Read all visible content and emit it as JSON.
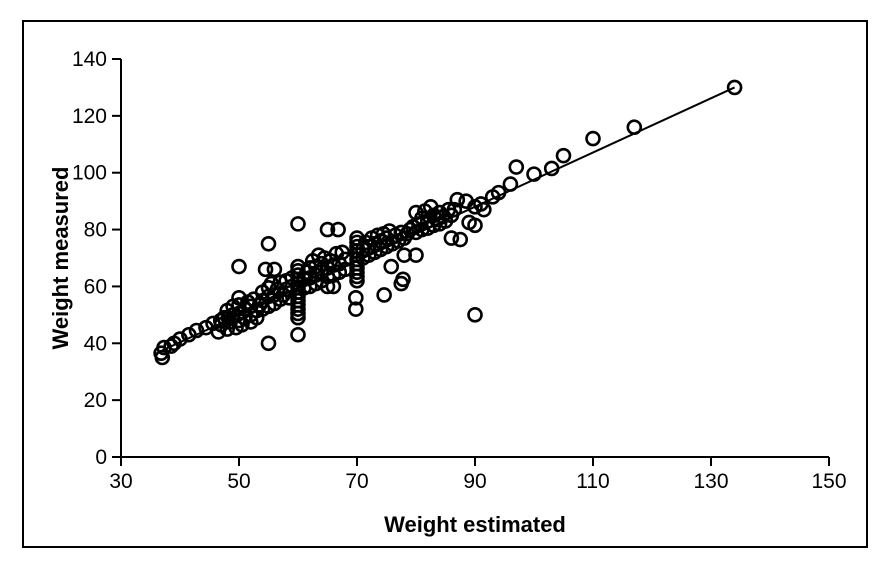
{
  "figure": {
    "background": "#ffffff",
    "border_color": "#000000"
  },
  "chart_data": {
    "type": "scatter",
    "title": "",
    "xlabel": "Weight estimated",
    "ylabel": "Weight measured",
    "xlim": [
      30,
      150
    ],
    "ylim": [
      0,
      140
    ],
    "xticks": [
      30,
      50,
      70,
      90,
      110,
      130,
      150
    ],
    "yticks": [
      0,
      20,
      40,
      60,
      80,
      100,
      120,
      140
    ],
    "grid": false,
    "legend": "none",
    "marker": {
      "shape": "open-circle",
      "radius": 6.5,
      "stroke_width": 2.6,
      "color": "#000000"
    },
    "trend_line": {
      "x1": 37,
      "y1": 37.5,
      "x2": 134,
      "y2": 130,
      "color": "#000000",
      "width": 2
    },
    "axis_color": "#000000",
    "points": [
      [
        37,
        35
      ],
      [
        36.8,
        36.5
      ],
      [
        37.3,
        38.5
      ],
      [
        38.5,
        39
      ],
      [
        39,
        40
      ],
      [
        40,
        41.5
      ],
      [
        41.5,
        43
      ],
      [
        42.8,
        44.5
      ],
      [
        44.4,
        45.5
      ],
      [
        45.6,
        47
      ],
      [
        46.9,
        48
      ],
      [
        48.2,
        49
      ],
      [
        46.5,
        44
      ],
      [
        47,
        46.5
      ],
      [
        47.5,
        49
      ],
      [
        48,
        51.5
      ],
      [
        48,
        45
      ],
      [
        48.5,
        47.5
      ],
      [
        49,
        50
      ],
      [
        49,
        53
      ],
      [
        49.5,
        45.5
      ],
      [
        50,
        48
      ],
      [
        50,
        50.5
      ],
      [
        50,
        53.5
      ],
      [
        50,
        56
      ],
      [
        50.5,
        46.5
      ],
      [
        51,
        49
      ],
      [
        51,
        52
      ],
      [
        51.5,
        54.5
      ],
      [
        52,
        47.5
      ],
      [
        52,
        50
      ],
      [
        52,
        53
      ],
      [
        52.5,
        55.5
      ],
      [
        53,
        49
      ],
      [
        53,
        51.5
      ],
      [
        53.5,
        53.5
      ],
      [
        54,
        52
      ],
      [
        54,
        55
      ],
      [
        54,
        58
      ],
      [
        54.5,
        66
      ],
      [
        55,
        53
      ],
      [
        55,
        56.5
      ],
      [
        55,
        59.5
      ],
      [
        55.5,
        61
      ],
      [
        56,
        54
      ],
      [
        56,
        57
      ],
      [
        56,
        66
      ],
      [
        56.5,
        59
      ],
      [
        57,
        55.5
      ],
      [
        57,
        61.5
      ],
      [
        57.5,
        57
      ],
      [
        58,
        59
      ],
      [
        58,
        62
      ],
      [
        58.5,
        56
      ],
      [
        59,
        60
      ],
      [
        59,
        63
      ],
      [
        50,
        67
      ],
      [
        55,
        75
      ],
      [
        55,
        40
      ],
      [
        60,
        43
      ],
      [
        60,
        82
      ],
      [
        90,
        50
      ],
      [
        60,
        49
      ],
      [
        60,
        50.5
      ],
      [
        60,
        52
      ],
      [
        60,
        53.5
      ],
      [
        60,
        55
      ],
      [
        60,
        56.5
      ],
      [
        60,
        58
      ],
      [
        60,
        59.5
      ],
      [
        60,
        61
      ],
      [
        60,
        62.5
      ],
      [
        60,
        64
      ],
      [
        60,
        65.5
      ],
      [
        60,
        67
      ],
      [
        61,
        59.5
      ],
      [
        61,
        62.5
      ],
      [
        61.5,
        65
      ],
      [
        62,
        60
      ],
      [
        62,
        63
      ],
      [
        62,
        66.5
      ],
      [
        62.5,
        69
      ],
      [
        63,
        61
      ],
      [
        63,
        64
      ],
      [
        63,
        67
      ],
      [
        63.5,
        71
      ],
      [
        64,
        62
      ],
      [
        64,
        65
      ],
      [
        64,
        68
      ],
      [
        64.5,
        70
      ],
      [
        65,
        60
      ],
      [
        65,
        63.5
      ],
      [
        65,
        66.5
      ],
      [
        65.5,
        69
      ],
      [
        66,
        60
      ],
      [
        66,
        64
      ],
      [
        66,
        67.5
      ],
      [
        66.5,
        71.5
      ],
      [
        67,
        65
      ],
      [
        67,
        68
      ],
      [
        67.5,
        72
      ],
      [
        68,
        66
      ],
      [
        68,
        69.5
      ],
      [
        65,
        80
      ],
      [
        66.8,
        80
      ],
      [
        70,
        62
      ],
      [
        70,
        63.5
      ],
      [
        70,
        65
      ],
      [
        70,
        66.5
      ],
      [
        70,
        68
      ],
      [
        70,
        69.5
      ],
      [
        70,
        71
      ],
      [
        70,
        72.5
      ],
      [
        70,
        74
      ],
      [
        70,
        75.5
      ],
      [
        70,
        77
      ],
      [
        69.8,
        56
      ],
      [
        69.8,
        52
      ],
      [
        71,
        70
      ],
      [
        71,
        73
      ],
      [
        71.5,
        75.5
      ],
      [
        72,
        71
      ],
      [
        72,
        74
      ],
      [
        72.5,
        77
      ],
      [
        73,
        72
      ],
      [
        73,
        75
      ],
      [
        73.5,
        78
      ],
      [
        74,
        73
      ],
      [
        74,
        76
      ],
      [
        74.5,
        78.5
      ],
      [
        75,
        74
      ],
      [
        75,
        77
      ],
      [
        75.5,
        79.5
      ],
      [
        76,
        75
      ],
      [
        76.5,
        78
      ],
      [
        77,
        76
      ],
      [
        77.5,
        79
      ],
      [
        78,
        77
      ],
      [
        78.5,
        78.5
      ],
      [
        79,
        80
      ],
      [
        74.6,
        57
      ],
      [
        77.5,
        61
      ],
      [
        75.8,
        67
      ],
      [
        77.8,
        62.5
      ],
      [
        80,
        71
      ],
      [
        78,
        71
      ],
      [
        79.5,
        81
      ],
      [
        80,
        79
      ],
      [
        80,
        86
      ],
      [
        80.5,
        82
      ],
      [
        81,
        80
      ],
      [
        81,
        84
      ],
      [
        81.5,
        86.5
      ],
      [
        82,
        80.5
      ],
      [
        82,
        83
      ],
      [
        82.5,
        88
      ],
      [
        83,
        81.5
      ],
      [
        83,
        85
      ],
      [
        83.5,
        83.5
      ],
      [
        84,
        82
      ],
      [
        84,
        86
      ],
      [
        84.5,
        84.5
      ],
      [
        85,
        83
      ],
      [
        85.5,
        87
      ],
      [
        86,
        85
      ],
      [
        86,
        77
      ],
      [
        87.5,
        76.5
      ],
      [
        86.5,
        87
      ],
      [
        87,
        90.5
      ],
      [
        88.5,
        90
      ],
      [
        89,
        82.5
      ],
      [
        90,
        81.5
      ],
      [
        90,
        88
      ],
      [
        91,
        89
      ],
      [
        91.5,
        87
      ],
      [
        93,
        91.5
      ],
      [
        94,
        93
      ],
      [
        96,
        96
      ],
      [
        97,
        102
      ],
      [
        100,
        99.5
      ],
      [
        103,
        101.5
      ],
      [
        105,
        106
      ],
      [
        110,
        112
      ],
      [
        117,
        116
      ],
      [
        134,
        130
      ]
    ]
  }
}
